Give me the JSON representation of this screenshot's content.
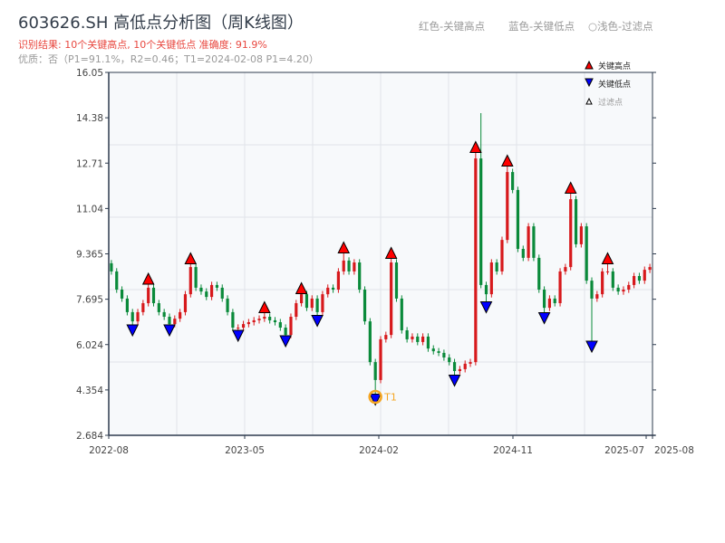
{
  "header": {
    "title": "603626.SH 高低点分析图（周K线图）",
    "result": "识别结果: 10个关键高点, 10个关键低点   准确度: 91.9%",
    "quality": "优质：否（P1=91.1%，R2=0.46；T1=2024-02-08 P1=4.20）",
    "legend_red": "红色-关键高点",
    "legend_blue": "蓝色-关键低点",
    "legend_light": "○浅色-过滤点"
  },
  "colors": {
    "up": "#d7191c",
    "down": "#0a8a3a",
    "high_marker": "#ff0000",
    "low_marker": "#0000ff",
    "t1": "#f5a623",
    "plot_bg": "#f7f9fb"
  },
  "chart_data": {
    "type": "candlestick",
    "title": "603626.SH 高低点分析图（周K线图）",
    "ylim": [
      2.684,
      16.05
    ],
    "yticks": [
      "16.05",
      "14.38",
      "12.71",
      "11.04",
      "9.365",
      "7.695",
      "6.024",
      "4.354",
      "2.684"
    ],
    "xticks": [
      "2022-08",
      "2023-05",
      "2024-02",
      "2024-11",
      "2025-07",
      "2025-08"
    ],
    "closes": [
      8.72,
      8.05,
      7.72,
      7.22,
      6.88,
      7.22,
      7.55,
      8.12,
      7.55,
      7.22,
      7.05,
      6.78,
      6.98,
      7.22,
      7.88,
      8.88,
      8.12,
      7.98,
      7.78,
      8.22,
      8.12,
      7.72,
      7.22,
      6.65,
      6.65,
      6.78,
      6.85,
      6.92,
      6.98,
      7.05,
      6.92,
      6.85,
      6.65,
      6.38,
      7.05,
      7.55,
      7.88,
      7.38,
      7.72,
      7.22,
      7.88,
      8.12,
      8.05,
      8.72,
      9.12,
      8.72,
      9.05,
      8.05,
      6.88,
      5.38,
      4.72,
      6.22,
      6.38,
      9.05,
      7.72,
      6.55,
      6.22,
      6.32,
      6.12,
      6.32,
      5.88,
      5.78,
      5.72,
      5.55,
      5.38,
      5.05,
      5.12,
      5.32,
      5.38,
      12.88,
      8.22,
      7.88,
      9.05,
      8.72,
      9.88,
      12.38,
      11.72,
      9.55,
      9.22,
      10.38,
      9.22,
      8.05,
      7.38,
      7.72,
      7.55,
      8.72,
      8.88,
      11.38,
      9.72,
      10.38,
      8.38,
      7.72,
      7.88,
      8.72,
      8.72,
      8.12,
      7.98,
      8.05,
      8.22,
      8.55,
      8.38,
      8.78,
      8.88
    ],
    "high_overrides": {
      "70": 14.55
    },
    "key_highs": [
      {
        "i": 7,
        "price": 8.25
      },
      {
        "i": 15,
        "price": 9.0
      },
      {
        "i": 29,
        "price": 7.2
      },
      {
        "i": 36,
        "price": 7.9
      },
      {
        "i": 44,
        "price": 9.4
      },
      {
        "i": 53,
        "price": 9.2
      },
      {
        "i": 69,
        "price": 13.1
      },
      {
        "i": 75,
        "price": 12.6
      },
      {
        "i": 87,
        "price": 11.6
      },
      {
        "i": 94,
        "price": 9.0
      }
    ],
    "key_lows": [
      {
        "i": 4,
        "price": 6.75
      },
      {
        "i": 11,
        "price": 6.75
      },
      {
        "i": 24,
        "price": 6.55
      },
      {
        "i": 33,
        "price": 6.35
      },
      {
        "i": 39,
        "price": 7.1
      },
      {
        "i": 50,
        "price": 4.2
      },
      {
        "i": 65,
        "price": 4.9
      },
      {
        "i": 71,
        "price": 7.6
      },
      {
        "i": 82,
        "price": 7.2
      },
      {
        "i": 91,
        "price": 6.15
      }
    ],
    "t1": {
      "i": 50,
      "price": 4.2,
      "label": "T1"
    },
    "legend": {
      "position": "top-right",
      "items": [
        "关键高点",
        "关键低点",
        "过滤点"
      ]
    }
  }
}
